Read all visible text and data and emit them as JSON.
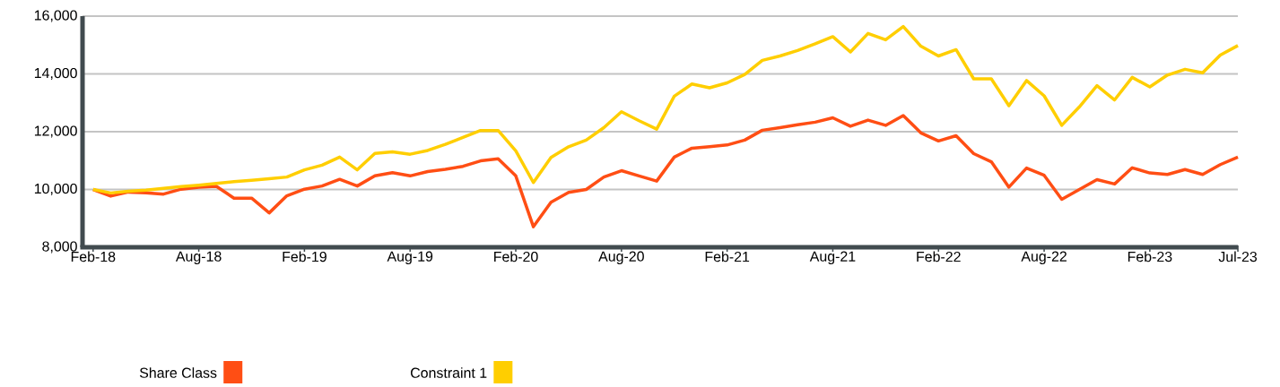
{
  "chart_data": {
    "type": "line",
    "categories": [
      "Feb-18",
      null,
      null,
      null,
      null,
      null,
      "Aug-18",
      null,
      null,
      null,
      null,
      null,
      "Feb-19",
      null,
      null,
      null,
      null,
      null,
      "Aug-19",
      null,
      null,
      null,
      null,
      null,
      "Feb-20",
      null,
      null,
      null,
      null,
      null,
      "Aug-20",
      null,
      null,
      null,
      null,
      null,
      "Feb-21",
      null,
      null,
      null,
      null,
      null,
      "Aug-21",
      null,
      null,
      null,
      null,
      null,
      "Feb-22",
      null,
      null,
      null,
      null,
      null,
      "Aug-22",
      null,
      null,
      null,
      null,
      null,
      "Feb-23",
      null,
      null,
      null,
      null,
      "Jul-23"
    ],
    "series": [
      {
        "name": "Share Class",
        "color": "#ff4e14",
        "values": [
          10000,
          9770,
          9910,
          9880,
          9840,
          10010,
          10080,
          10110,
          9700,
          9700,
          9190,
          9780,
          10010,
          10120,
          10350,
          10120,
          10470,
          10580,
          10470,
          10620,
          10700,
          10800,
          10990,
          11060,
          10470,
          8710,
          9560,
          9900,
          10000,
          10430,
          10650,
          10470,
          10290,
          11120,
          11430,
          11480,
          11540,
          11710,
          12050,
          12140,
          12240,
          12330,
          12480,
          12190,
          12400,
          12220,
          12560,
          11960,
          11680,
          11860,
          11240,
          10960,
          10080,
          10740,
          10490,
          9660,
          10000,
          10340,
          10190,
          10750,
          10570,
          10520,
          10690,
          10520,
          10860,
          11120
        ]
      },
      {
        "name": "Constraint 1",
        "color": "#ffce00",
        "values": [
          10000,
          9880,
          9940,
          9980,
          10040,
          10100,
          10150,
          10210,
          10270,
          10320,
          10370,
          10430,
          10680,
          10840,
          11120,
          10680,
          11250,
          11300,
          11220,
          11350,
          11560,
          11800,
          12040,
          12040,
          11340,
          10240,
          11110,
          11480,
          11710,
          12140,
          12690,
          12380,
          12090,
          13230,
          13650,
          13520,
          13690,
          13980,
          14470,
          14620,
          14810,
          15040,
          15290,
          14760,
          15400,
          15180,
          15640,
          14960,
          14620,
          14840,
          13830,
          13830,
          12900,
          13770,
          13240,
          12220,
          12860,
          13590,
          13100,
          13880,
          13550,
          13960,
          14160,
          14040,
          14650,
          14980
        ]
      }
    ],
    "ylim": [
      8000,
      16000
    ],
    "yticks": [
      {
        "value": 8000,
        "label": "8,000"
      },
      {
        "value": 10000,
        "label": "10,000"
      },
      {
        "value": 12000,
        "label": "12,000"
      },
      {
        "value": 14000,
        "label": "14,000"
      },
      {
        "value": 16000,
        "label": "16,000"
      }
    ],
    "grid": "y",
    "legend": "bottom",
    "marker": "none",
    "line_style": "solid"
  }
}
